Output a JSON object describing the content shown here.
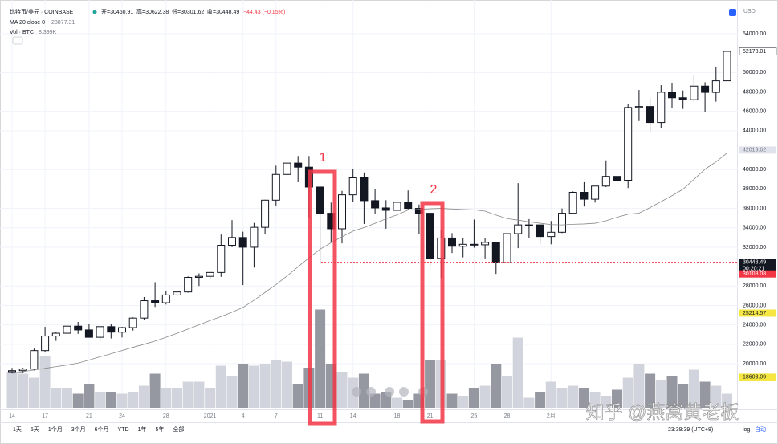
{
  "chart_data": {
    "type": "candlestick",
    "header": {
      "symbol": "比特币/美元 · COINBASE",
      "open": "开=30460.91",
      "high": "高=30622.38",
      "low": "低=30301.62",
      "close": "收=30448.49",
      "change": "−44.43 (−0.15%)",
      "ma_label": "MA 20 close 0",
      "ma_value": "28877.31",
      "vol_label": "Vol · BTC",
      "vol_value": "8.399K"
    },
    "currency": "USD",
    "categories": [
      "14",
      null,
      null,
      "17",
      null,
      null,
      null,
      "21",
      null,
      null,
      "24",
      null,
      null,
      null,
      "28",
      null,
      null,
      null,
      "2021",
      null,
      null,
      "4",
      null,
      null,
      "7",
      null,
      null,
      null,
      "11",
      null,
      null,
      "14",
      null,
      null,
      null,
      "18",
      null,
      null,
      "21",
      null,
      null,
      null,
      "25",
      null,
      null,
      "28",
      null,
      null,
      null,
      "2月",
      null,
      null,
      null,
      null,
      null,
      null,
      null,
      null,
      null,
      null,
      null,
      null,
      null,
      null,
      null,
      null
    ],
    "open": [
      19170,
      19280,
      19440,
      21350,
      22850,
      23140,
      23870,
      23480,
      22720,
      23820,
      23250,
      23720,
      24700,
      26490,
      26280,
      27080,
      27390,
      28890,
      29000,
      29400,
      32200,
      33000,
      32000,
      34050,
      36850,
      39500,
      40670,
      40250,
      38200,
      35500,
      33900,
      37400,
      39150,
      36800,
      36050,
      35800,
      36630,
      36000,
      35500,
      30850,
      32950,
      32100,
      32300,
      32250,
      32500,
      30400,
      33400,
      34300,
      34300,
      33100,
      33540,
      35500,
      37660,
      36950,
      38300,
      39300,
      38900,
      46400,
      46500,
      44850,
      47970,
      47400,
      47200,
      48600,
      47950,
      49150
    ],
    "high": [
      19570,
      19570,
      21560,
      23800,
      23290,
      24170,
      24300,
      24120,
      23850,
      24100,
      23790,
      24780,
      26870,
      28400,
      27500,
      27390,
      28990,
      29300,
      29600,
      33300,
      34800,
      33600,
      34500,
      36900,
      40400,
      41950,
      41400,
      41400,
      38300,
      36600,
      37800,
      40100,
      39700,
      37950,
      36850,
      37400,
      37850,
      36400,
      35600,
      33800,
      33450,
      32950,
      34850,
      32900,
      32550,
      34900,
      38600,
      34900,
      34350,
      34700,
      36000,
      37750,
      38700,
      38300,
      40950,
      39750,
      46750,
      48200,
      47350,
      48700,
      48950,
      48150,
      49700,
      49000,
      50600,
      52600
    ],
    "low": [
      19050,
      19060,
      19300,
      21230,
      22350,
      22780,
      23070,
      22760,
      22370,
      22600,
      22700,
      23420,
      24500,
      25850,
      26100,
      25860,
      27320,
      28000,
      28700,
      28950,
      32000,
      28100,
      29900,
      33400,
      36300,
      36500,
      38700,
      35000,
      30300,
      32500,
      32400,
      36700,
      34400,
      35400,
      33900,
      34800,
      35900,
      33400,
      30100,
      28850,
      31400,
      30950,
      31950,
      30850,
      29250,
      29900,
      31900,
      32900,
      32300,
      32300,
      33450,
      35400,
      36200,
      36600,
      38200,
      37400,
      38100,
      45000,
      43800,
      44250,
      46300,
      46250,
      47000,
      45900,
      47000,
      48950
    ],
    "close": [
      19280,
      19440,
      21350,
      22850,
      23140,
      23870,
      23480,
      22720,
      23820,
      23250,
      23720,
      24700,
      26490,
      26280,
      27080,
      27390,
      28890,
      29000,
      29400,
      32200,
      33000,
      32000,
      34050,
      36850,
      39500,
      40670,
      40250,
      38200,
      35500,
      33900,
      37400,
      39150,
      36800,
      36050,
      35800,
      36630,
      36000,
      35500,
      30850,
      32950,
      32100,
      32300,
      32250,
      32500,
      30400,
      33400,
      34300,
      34300,
      33100,
      33540,
      35500,
      37660,
      36950,
      38300,
      39300,
      38900,
      46400,
      46500,
      44850,
      47970,
      47400,
      47200,
      48600,
      47950,
      49150,
      52178.01
    ],
    "volume": [
      18,
      17,
      15,
      26,
      10,
      10,
      7,
      12,
      8,
      8,
      7,
      8,
      11,
      17,
      10,
      10,
      13,
      13,
      10,
      21,
      16,
      22,
      21,
      22,
      24,
      23,
      12,
      20,
      49,
      22,
      18,
      15,
      17,
      7,
      8,
      5,
      4,
      7,
      24,
      24,
      7,
      6,
      10,
      11,
      22,
      16,
      35,
      5,
      8,
      13,
      10,
      11,
      10,
      8,
      6,
      9,
      15,
      22,
      17,
      14,
      16,
      12,
      19,
      13,
      11,
      7
    ],
    "volume_lim": [
      0,
      200
    ],
    "ma": {
      "color": "#8a8a8a",
      "values": [
        19000,
        19180,
        19350,
        19520,
        19700,
        19860,
        20060,
        20370,
        20710,
        21020,
        21350,
        21690,
        22000,
        22330,
        22720,
        23130,
        23570,
        24010,
        24450,
        24860,
        25300,
        25800,
        26540,
        27340,
        28150,
        29040,
        29980,
        30910,
        31790,
        32460,
        33080,
        33660,
        34020,
        34470,
        34930,
        35330,
        35830,
        35900,
        35960,
        36000,
        35940,
        35890,
        35850,
        35720,
        35310,
        34950,
        34800,
        34610,
        34470,
        34330,
        34300,
        34360,
        34400,
        34470,
        34720,
        35090,
        35400,
        35510,
        36080,
        36700,
        37310,
        37980,
        39000,
        40040,
        40800,
        41700
      ]
    },
    "ylim": [
      15450,
      56810
    ],
    "yticks": [
      {
        "value": 20000,
        "label": "20000.00"
      },
      {
        "value": 22000,
        "label": "22000.00"
      },
      {
        "value": 24000,
        "label": "24000.00"
      },
      {
        "value": 26000,
        "label": "26000.00"
      },
      {
        "value": 28000,
        "label": "28000.00"
      },
      {
        "value": 32000,
        "label": "32000.00"
      },
      {
        "value": 34000,
        "label": "34000.00"
      },
      {
        "value": 36000,
        "label": "36000.00"
      },
      {
        "value": 38000,
        "label": "38000.00"
      },
      {
        "value": 40000,
        "label": "40000.00"
      },
      {
        "value": 44000,
        "label": "44000.00"
      },
      {
        "value": 46000,
        "label": "46000.00"
      },
      {
        "value": 48000,
        "label": "48000.00"
      },
      {
        "value": 50000,
        "label": "50000.00"
      },
      {
        "value": 54000,
        "label": "54000.00"
      }
    ],
    "grid": true,
    "price_markers": [
      {
        "value": 52178.01,
        "color": "#ffffff",
        "text_color": "#131722"
      },
      {
        "value": 42013.62,
        "color": "#e0e3eb",
        "text_color": "#787b86"
      },
      {
        "value": 30448.49,
        "color": "#131722",
        "text_color": "#ffffff",
        "sub": "00:20:21"
      },
      {
        "value": 30108.08,
        "color": "#f23645",
        "text_color": "#ffffff"
      },
      {
        "value": 25214.57,
        "color": "#f5e642",
        "text_color": "#131722"
      },
      {
        "value": 18603.09,
        "color": "#f5e642",
        "text_color": "#131722"
      }
    ],
    "current_line": {
      "value": 30448.49,
      "color": "#f23645"
    },
    "annotations": [
      "1",
      "2"
    ],
    "toolbar": [
      "1天",
      "5天",
      "1个月",
      "3个月",
      "6个月",
      "YTD",
      "1年",
      "5年",
      "全部"
    ],
    "clock": "23:39:39 (UTC+8)",
    "log": "log",
    "auto": "自动",
    "watermark": "知乎 @燕窝黄老板"
  }
}
